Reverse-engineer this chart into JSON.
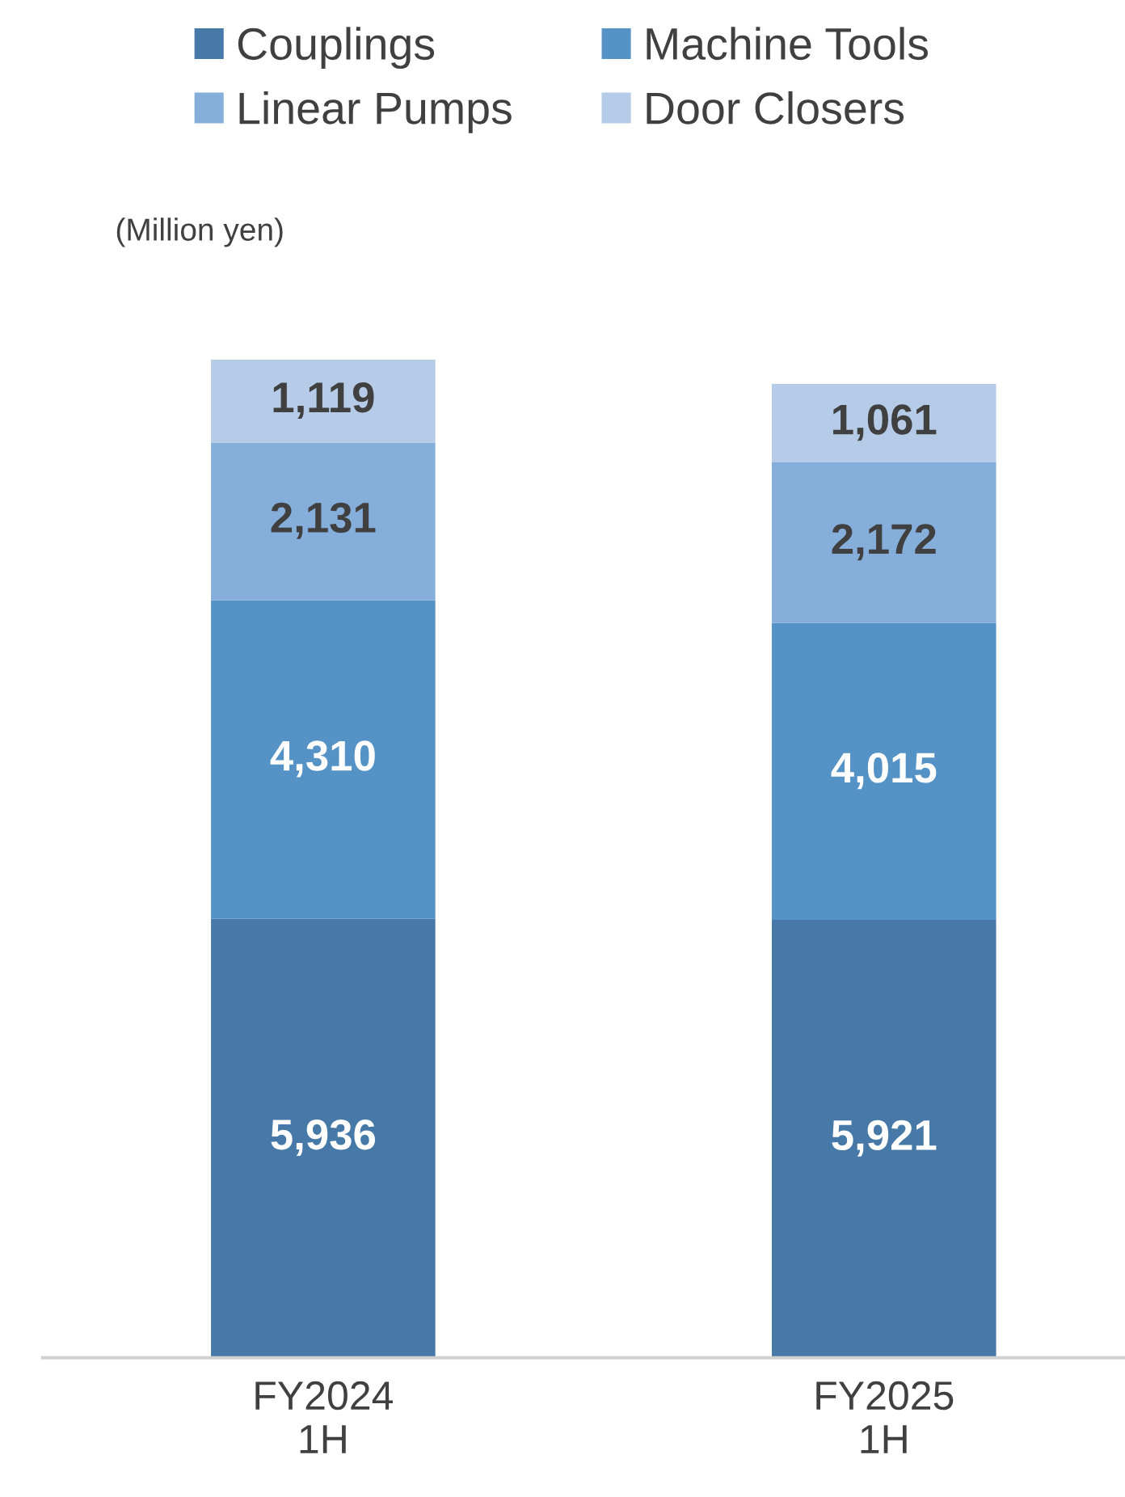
{
  "chart_data": {
    "type": "bar",
    "stacked": true,
    "ylabel": "(Million yen)",
    "categories": [
      "FY2024\n1H",
      "FY2025\n1H"
    ],
    "series": [
      {
        "name": "Couplings",
        "color": "#4779a8",
        "values": [
          5936,
          5921
        ],
        "value_labels": [
          "5,936",
          "5,921"
        ]
      },
      {
        "name": "Machine Tools",
        "color": "#5592c6",
        "values": [
          4310,
          4015
        ],
        "value_labels": [
          "4,310",
          "4,015"
        ]
      },
      {
        "name": "Linear Pumps",
        "color": "#86aedb",
        "values": [
          2131,
          2172
        ],
        "value_labels": [
          "2,131",
          "2,172"
        ]
      },
      {
        "name": "Door Closers",
        "color": "#b5cbe8",
        "values": [
          1119,
          1061
        ],
        "value_labels": [
          "1,119",
          "1,061"
        ]
      }
    ],
    "legend": "top",
    "grid": false,
    "tick_labels": "x"
  }
}
